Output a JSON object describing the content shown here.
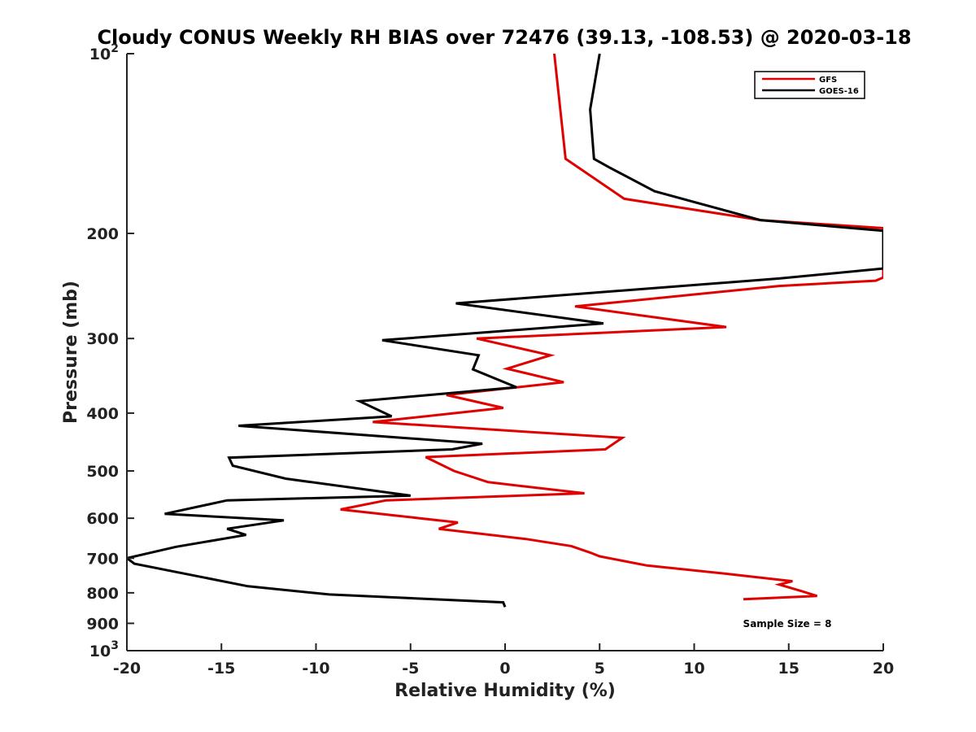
{
  "chart_data": {
    "type": "line",
    "title": "Cloudy CONUS Weekly RH BIAS over 72476 (39.13, -108.53) @ 2020-03-18",
    "xlabel": "Relative Humidity (%)",
    "ylabel": "Pressure (mb)",
    "xlim": [
      -20,
      20
    ],
    "ylim": [
      100,
      1000
    ],
    "y_scale": "log",
    "y_reversed": true,
    "grid": false,
    "legend_position": "top-right",
    "x_ticks": [
      {
        "value": -20,
        "label": "-20"
      },
      {
        "value": -15,
        "label": "-15"
      },
      {
        "value": -10,
        "label": "-10"
      },
      {
        "value": -5,
        "label": "-5"
      },
      {
        "value": 0,
        "label": "0"
      },
      {
        "value": 5,
        "label": "5"
      },
      {
        "value": 10,
        "label": "10"
      },
      {
        "value": 15,
        "label": "15"
      },
      {
        "value": 20,
        "label": "20"
      }
    ],
    "y_ticks": [
      {
        "value": 100,
        "base": "10",
        "exp": "2"
      },
      {
        "value": 200,
        "base": "200",
        "exp": ""
      },
      {
        "value": 300,
        "base": "300",
        "exp": ""
      },
      {
        "value": 400,
        "base": "400",
        "exp": ""
      },
      {
        "value": 500,
        "base": "500",
        "exp": ""
      },
      {
        "value": 600,
        "base": "600",
        "exp": ""
      },
      {
        "value": 700,
        "base": "700",
        "exp": ""
      },
      {
        "value": 800,
        "base": "800",
        "exp": ""
      },
      {
        "value": 900,
        "base": "900",
        "exp": ""
      },
      {
        "value": 1000,
        "base": "10",
        "exp": "3"
      }
    ],
    "series": [
      {
        "name": "GFS",
        "color": "#e00000",
        "points": [
          [
            2.6,
            100
          ],
          [
            3.2,
            150
          ],
          [
            6.3,
            175
          ],
          [
            13.5,
            190
          ],
          [
            20,
            196
          ],
          [
            20,
            237
          ],
          [
            19.6,
            240
          ],
          [
            14.5,
            245
          ],
          [
            3.7,
            265
          ],
          [
            11.7,
            287
          ],
          [
            -1.5,
            300
          ],
          [
            2.4,
            320
          ],
          [
            0.1,
            337
          ],
          [
            3.1,
            355
          ],
          [
            -3.1,
            373
          ],
          [
            -0.1,
            392
          ],
          [
            -7.0,
            414
          ],
          [
            6.2,
            440
          ],
          [
            5.3,
            460
          ],
          [
            -4.2,
            474
          ],
          [
            -2.7,
            500
          ],
          [
            -0.9,
            522
          ],
          [
            4.2,
            545
          ],
          [
            -6.3,
            560
          ],
          [
            -8.7,
            580
          ],
          [
            -2.5,
            610
          ],
          [
            -3.5,
            625
          ],
          [
            1.1,
            650
          ],
          [
            3.5,
            668
          ],
          [
            4.5,
            685
          ],
          [
            5.0,
            695
          ],
          [
            7.5,
            720
          ],
          [
            12.0,
            745
          ],
          [
            15.2,
            765
          ],
          [
            14.5,
            775
          ],
          [
            15.7,
            795
          ],
          [
            16.5,
            810
          ],
          [
            12.6,
            820
          ]
        ]
      },
      {
        "name": "GOES-16",
        "color": "#000000",
        "points": [
          [
            5.0,
            100
          ],
          [
            4.5,
            124
          ],
          [
            4.7,
            150
          ],
          [
            5.5,
            155
          ],
          [
            7.9,
            170
          ],
          [
            13.5,
            190
          ],
          [
            20,
            198
          ],
          [
            20,
            229
          ],
          [
            14.5,
            238
          ],
          [
            -2.6,
            262
          ],
          [
            5.2,
            283
          ],
          [
            -6.5,
            302
          ],
          [
            -1.4,
            320
          ],
          [
            -1.7,
            338
          ],
          [
            0.6,
            362
          ],
          [
            -7.7,
            382
          ],
          [
            -6.0,
            405
          ],
          [
            -14.1,
            420
          ],
          [
            -1.2,
            450
          ],
          [
            -2.8,
            460
          ],
          [
            -14.6,
            475
          ],
          [
            -14.4,
            490
          ],
          [
            -11.6,
            515
          ],
          [
            -5.0,
            550
          ],
          [
            -14.7,
            560
          ],
          [
            -18.0,
            590
          ],
          [
            -11.7,
            605
          ],
          [
            -14.7,
            625
          ],
          [
            -13.7,
            640
          ],
          [
            -17.4,
            670
          ],
          [
            -20,
            700
          ],
          [
            -19.6,
            715
          ],
          [
            -16.3,
            750
          ],
          [
            -13.6,
            780
          ],
          [
            -9.3,
            805
          ],
          [
            -0.1,
            830
          ],
          [
            0.0,
            845
          ]
        ]
      }
    ],
    "annotations": [
      {
        "text": "Sample Size = 8"
      }
    ]
  }
}
